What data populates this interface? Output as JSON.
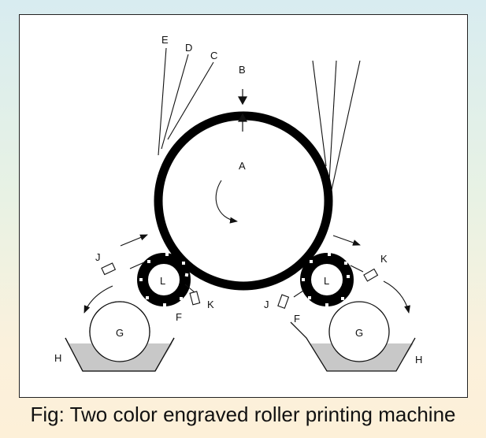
{
  "caption": "Fig: Two color engraved roller printing machine",
  "labels": {
    "A": "A",
    "B": "B",
    "C": "C",
    "D": "D",
    "E": "E",
    "F_left": "F",
    "F_right": "F",
    "G_left": "G",
    "G_right": "G",
    "H_left": "H",
    "H_right": "H",
    "J_left": "J",
    "J_right": "J",
    "K_left": "K",
    "K_right": "K",
    "L_left": "L",
    "L_right": "L"
  }
}
